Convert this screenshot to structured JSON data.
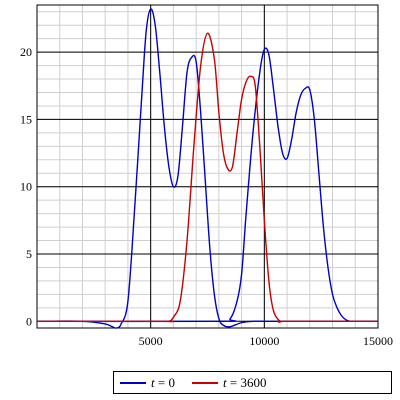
{
  "chart_data": {
    "type": "line",
    "title": "",
    "xlabel": "",
    "ylabel": "",
    "xlim": [
      0,
      15000
    ],
    "ylim": [
      -0.5,
      23.5
    ],
    "x_ticks": [
      5000,
      10000,
      15000
    ],
    "y_ticks": [
      0,
      5,
      10,
      15,
      20
    ],
    "x_tick_labels": [
      "5000",
      "10000",
      "15000"
    ],
    "y_tick_labels": [
      "0",
      "5",
      "10",
      "15",
      "20"
    ],
    "minor_grid": true,
    "major_grid": true,
    "legend_position": "bottom",
    "series": [
      {
        "name": "t = 0",
        "legend_var": "t",
        "legend_value": "0",
        "color": "#0000c8",
        "x": [
          0,
          2000,
          3000,
          3300,
          3500,
          3700,
          4000,
          4300,
          4600,
          4800,
          5000,
          5200,
          5400,
          5600,
          5800,
          6000,
          6200,
          6400,
          6600,
          6800,
          7000,
          7200,
          7400,
          7600,
          7800,
          8000,
          8200,
          8500,
          9000,
          9500,
          10000,
          10500,
          11000,
          15000
        ],
        "y": [
          0,
          0,
          -0.2,
          -0.4,
          -0.5,
          -0.2,
          1.5,
          8.5,
          16.5,
          21.5,
          23.2,
          22,
          18.5,
          14.5,
          11.5,
          10,
          10.8,
          14.5,
          18.5,
          19.6,
          19.3,
          15.5,
          10.5,
          5.5,
          2,
          0.2,
          -0.3,
          -0.4,
          -0.1,
          0,
          0,
          0,
          0,
          0
        ]
      },
      {
        "name": "t = 3600",
        "legend_var": "t",
        "legend_value": "3600",
        "color": "#c80000",
        "x": [
          0,
          5500,
          5800,
          6000,
          6300,
          6600,
          6900,
          7200,
          7500,
          7800,
          8000,
          8200,
          8400,
          8600,
          8800,
          9000,
          9200,
          9400,
          9600,
          9800,
          10000,
          10200,
          10400,
          10700,
          11000,
          15000
        ],
        "y": [
          0,
          0,
          0,
          0.3,
          1.5,
          6,
          13,
          19,
          21.4,
          19.5,
          15.5,
          12.5,
          11.3,
          11.5,
          14,
          16.5,
          17.8,
          18.2,
          17.5,
          13,
          7.5,
          3,
          0.8,
          0,
          0,
          0
        ]
      },
      {
        "name": "",
        "color": "#0000c8",
        "x": [
          0,
          8000,
          8500,
          8800,
          9000,
          9200,
          9500,
          9800,
          10000,
          10200,
          10400,
          10600,
          10800,
          11000,
          11200,
          11400,
          11600,
          11800,
          12000,
          12200,
          12400,
          12600,
          12800,
          13000,
          13200,
          13400,
          13600,
          13800,
          14000,
          14200,
          14400,
          15000
        ],
        "y": [
          0,
          0,
          0.2,
          1.5,
          3.5,
          8,
          14,
          18.5,
          20.2,
          19.8,
          17.3,
          14.5,
          12.5,
          12.1,
          13.5,
          15.5,
          16.8,
          17.3,
          17.2,
          15,
          11,
          7,
          4,
          2,
          1,
          0.4,
          0.1,
          0,
          0,
          0,
          0,
          0
        ]
      }
    ]
  },
  "legend": {
    "items": [
      {
        "var": "t",
        "eq": " = ",
        "value": "0",
        "color": "#0000c8"
      },
      {
        "var": "t",
        "eq": " = ",
        "value": "3600",
        "color": "#c80000"
      }
    ]
  }
}
